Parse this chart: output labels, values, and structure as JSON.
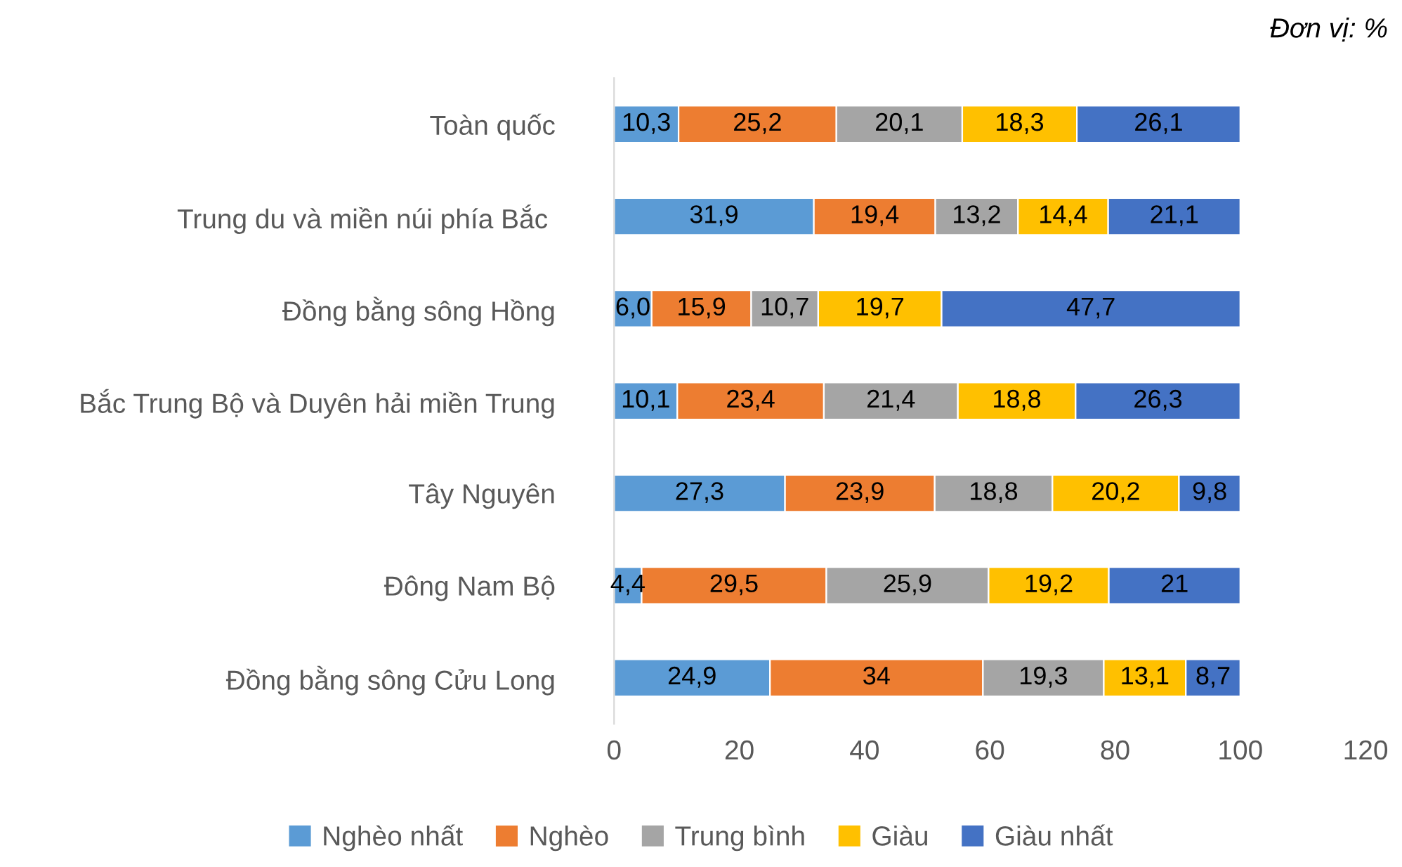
{
  "chart_data": {
    "type": "bar",
    "orientation": "horizontal",
    "stacked": true,
    "categories": [
      "Toàn quốc",
      "Trung du và miền núi phía Bắc ",
      "Đồng bằng sông Hồng",
      "Bắc Trung Bộ và Duyên hải miền Trung",
      "Tây Nguyên",
      "Đông Nam Bộ",
      "Đồng bằng sông Cửu Long"
    ],
    "series": [
      {
        "name": "Nghèo nhất",
        "color": "#5b9bd5",
        "values": [
          10.3,
          31.9,
          6.0,
          10.1,
          27.3,
          4.4,
          24.9
        ],
        "value_labels": [
          "10,3",
          "31,9",
          "6,0",
          "10,1",
          "27,3",
          "4,4",
          "24,9"
        ]
      },
      {
        "name": "Nghèo",
        "color": "#ed7d31",
        "values": [
          25.2,
          19.4,
          15.9,
          23.4,
          23.9,
          29.5,
          34
        ],
        "value_labels": [
          "25,2",
          "19,4",
          "15,9",
          "23,4",
          "23,9",
          "29,5",
          "34"
        ]
      },
      {
        "name": "Trung bình",
        "color": "#a5a5a5",
        "values": [
          20.1,
          13.2,
          10.7,
          21.4,
          18.8,
          25.9,
          19.3
        ],
        "value_labels": [
          "20,1",
          "13,2",
          "10,7",
          "21,4",
          "18,8",
          "25,9",
          "19,3"
        ]
      },
      {
        "name": "Giàu",
        "color": "#ffc000",
        "values": [
          18.3,
          14.4,
          19.7,
          18.8,
          20.2,
          19.2,
          13.1
        ],
        "value_labels": [
          "18,3",
          "14,4",
          "19,7",
          "18,8",
          "20,2",
          "19,2",
          "13,1"
        ]
      },
      {
        "name": "Giàu nhất",
        "color": "#4472c4",
        "values": [
          26.1,
          21.1,
          47.7,
          26.3,
          9.8,
          21,
          8.7
        ],
        "value_labels": [
          "26,1",
          "21,1",
          "47,7",
          "26,3",
          "9,8",
          "21",
          "8,7"
        ]
      }
    ],
    "xlim": [
      0,
      120
    ],
    "xticks": [
      0,
      20,
      40,
      60,
      80,
      100,
      120
    ],
    "grid": false,
    "legend": "bottom",
    "annotations": [
      "Đơn vị: %"
    ]
  }
}
